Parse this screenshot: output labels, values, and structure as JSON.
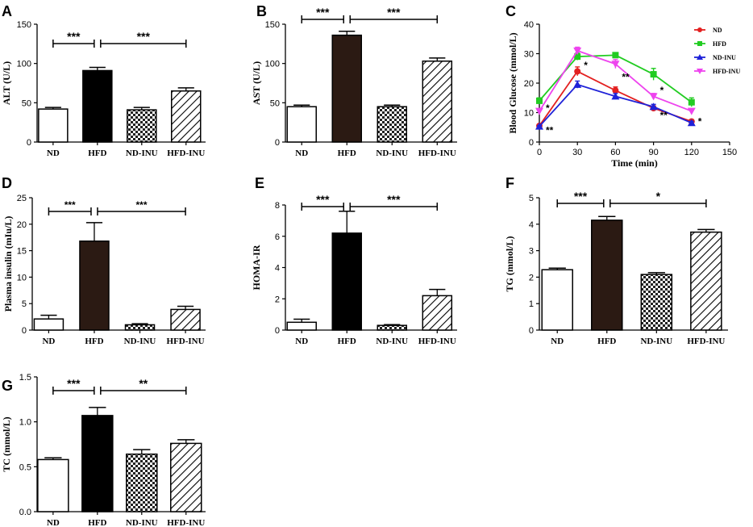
{
  "chart_data": [
    {
      "panel": "A",
      "type": "bar",
      "ylabel": "ALT (U/L)",
      "categories": [
        "ND",
        "HFD",
        "ND-INU",
        "HFD-INU"
      ],
      "values": [
        42,
        91,
        41,
        65
      ],
      "errors": [
        2,
        4,
        3,
        4
      ],
      "fills": [
        "white",
        "black",
        "checker",
        "hatch"
      ],
      "ylim": [
        0,
        150
      ],
      "yticks": [
        0,
        50,
        100,
        150
      ],
      "brackets": [
        {
          "from": 0,
          "to": 1,
          "label": "***"
        },
        {
          "from": 1,
          "to": 3,
          "label": "***"
        }
      ]
    },
    {
      "panel": "B",
      "type": "bar",
      "ylabel": "AST (U/L)",
      "categories": [
        "ND",
        "HFD",
        "ND-INU",
        "HFD-INU"
      ],
      "values": [
        45,
        136,
        45,
        103
      ],
      "errors": [
        2,
        5,
        2,
        4
      ],
      "fills": [
        "white",
        "brown",
        "checker",
        "hatch"
      ],
      "ylim": [
        0,
        150
      ],
      "yticks": [
        0,
        50,
        100,
        150
      ],
      "brackets": [
        {
          "from": 0,
          "to": 1,
          "label": "***"
        },
        {
          "from": 1,
          "to": 3,
          "label": "***"
        }
      ]
    },
    {
      "panel": "C",
      "type": "line",
      "xlabel": "Time (min)",
      "ylabel": "Blood Glucose (mmol/L)",
      "x": [
        0,
        30,
        60,
        90,
        120
      ],
      "xlim": [
        0,
        150
      ],
      "xticks": [
        0,
        30,
        60,
        90,
        120,
        150
      ],
      "ylim": [
        0,
        40
      ],
      "yticks": [
        0,
        10,
        20,
        30,
        40
      ],
      "series": [
        {
          "name": "ND",
          "color": "#e32020",
          "marker": "circle",
          "values": [
            5.5,
            24,
            17.5,
            11.5,
            7
          ],
          "errors": [
            0.4,
            1.5,
            1.2,
            0.8,
            0.5
          ]
        },
        {
          "name": "HFD",
          "color": "#22cc22",
          "marker": "square",
          "values": [
            14,
            29,
            29.5,
            23,
            13.5
          ],
          "errors": [
            1,
            1.2,
            0.5,
            2,
            1.5
          ]
        },
        {
          "name": "ND-INU",
          "color": "#1f22d8",
          "marker": "triangle-up",
          "values": [
            5.3,
            19.5,
            15.5,
            12,
            6.5
          ],
          "errors": [
            0.3,
            1.2,
            1,
            0.8,
            0.5
          ]
        },
        {
          "name": "HFD-INU",
          "color": "#ee44ee",
          "marker": "triangle-down",
          "values": [
            10.5,
            31,
            26.5,
            15.5,
            10.5
          ],
          "errors": [
            0.8,
            1.2,
            1.5,
            1,
            0.8
          ]
        }
      ],
      "annotations": [
        {
          "x": 0,
          "y": 11.5,
          "text": "*"
        },
        {
          "x": 0,
          "y": 4,
          "text": "**"
        },
        {
          "x": 30,
          "y": 26,
          "text": "*"
        },
        {
          "x": 60,
          "y": 22,
          "text": "**"
        },
        {
          "x": 90,
          "y": 17.5,
          "text": "*"
        },
        {
          "x": 90,
          "y": 9,
          "text": "**"
        },
        {
          "x": 120,
          "y": 7,
          "text": "*"
        }
      ]
    },
    {
      "panel": "D",
      "type": "bar",
      "ylabel": "Plasma insulin (mIu/L)",
      "categories": [
        "ND",
        "HFD",
        "ND-INU",
        "HFD-INU"
      ],
      "values": [
        2.1,
        16.8,
        1.0,
        3.9
      ],
      "errors": [
        0.7,
        3.5,
        0.2,
        0.6
      ],
      "fills": [
        "white",
        "brown",
        "checker",
        "hatch"
      ],
      "ylim": [
        0,
        25
      ],
      "yticks": [
        0,
        5,
        10,
        15,
        20,
        25
      ],
      "brackets": [
        {
          "from": 0,
          "to": 1,
          "label": "***"
        },
        {
          "from": 1,
          "to": 3,
          "label": "***"
        }
      ]
    },
    {
      "panel": "E",
      "type": "bar",
      "ylabel": "HOMA-IR",
      "categories": [
        "ND",
        "HFD",
        "ND-INU",
        "HFD-INU"
      ],
      "values": [
        0.5,
        6.2,
        0.3,
        2.2
      ],
      "errors": [
        0.2,
        1.4,
        0.05,
        0.4
      ],
      "fills": [
        "white",
        "black",
        "checker",
        "hatch"
      ],
      "ylim": [
        0,
        8
      ],
      "yticks": [
        0,
        2,
        4,
        6,
        8
      ],
      "brackets": [
        {
          "from": 0,
          "to": 1,
          "label": "***"
        },
        {
          "from": 1,
          "to": 3,
          "label": "***"
        }
      ]
    },
    {
      "panel": "F",
      "type": "bar",
      "ylabel": "TG (mmol/L)",
      "categories": [
        "ND",
        "HFD",
        "ND-INU",
        "HFD-INU"
      ],
      "values": [
        2.28,
        4.15,
        2.1,
        3.7
      ],
      "errors": [
        0.06,
        0.14,
        0.07,
        0.1
      ],
      "fills": [
        "white",
        "brown",
        "checker",
        "hatch"
      ],
      "ylim": [
        0,
        5
      ],
      "yticks": [
        0,
        1,
        2,
        3,
        4,
        5
      ],
      "brackets": [
        {
          "from": 0,
          "to": 1,
          "label": "***"
        },
        {
          "from": 1,
          "to": 3,
          "label": "*"
        }
      ]
    },
    {
      "panel": "G",
      "type": "bar",
      "ylabel": "TC (mmol/L)",
      "categories": [
        "ND",
        "HFD",
        "ND-INU",
        "HFD-INU"
      ],
      "values": [
        0.58,
        1.07,
        0.64,
        0.76
      ],
      "errors": [
        0.02,
        0.09,
        0.05,
        0.04
      ],
      "fills": [
        "white",
        "black",
        "checker",
        "hatch"
      ],
      "ylim": [
        0,
        1.5
      ],
      "yticks": [
        0,
        0.5,
        1.0,
        1.5
      ],
      "brackets": [
        {
          "from": 0,
          "to": 1,
          "label": "***"
        },
        {
          "from": 1,
          "to": 3,
          "label": "**"
        }
      ]
    }
  ]
}
